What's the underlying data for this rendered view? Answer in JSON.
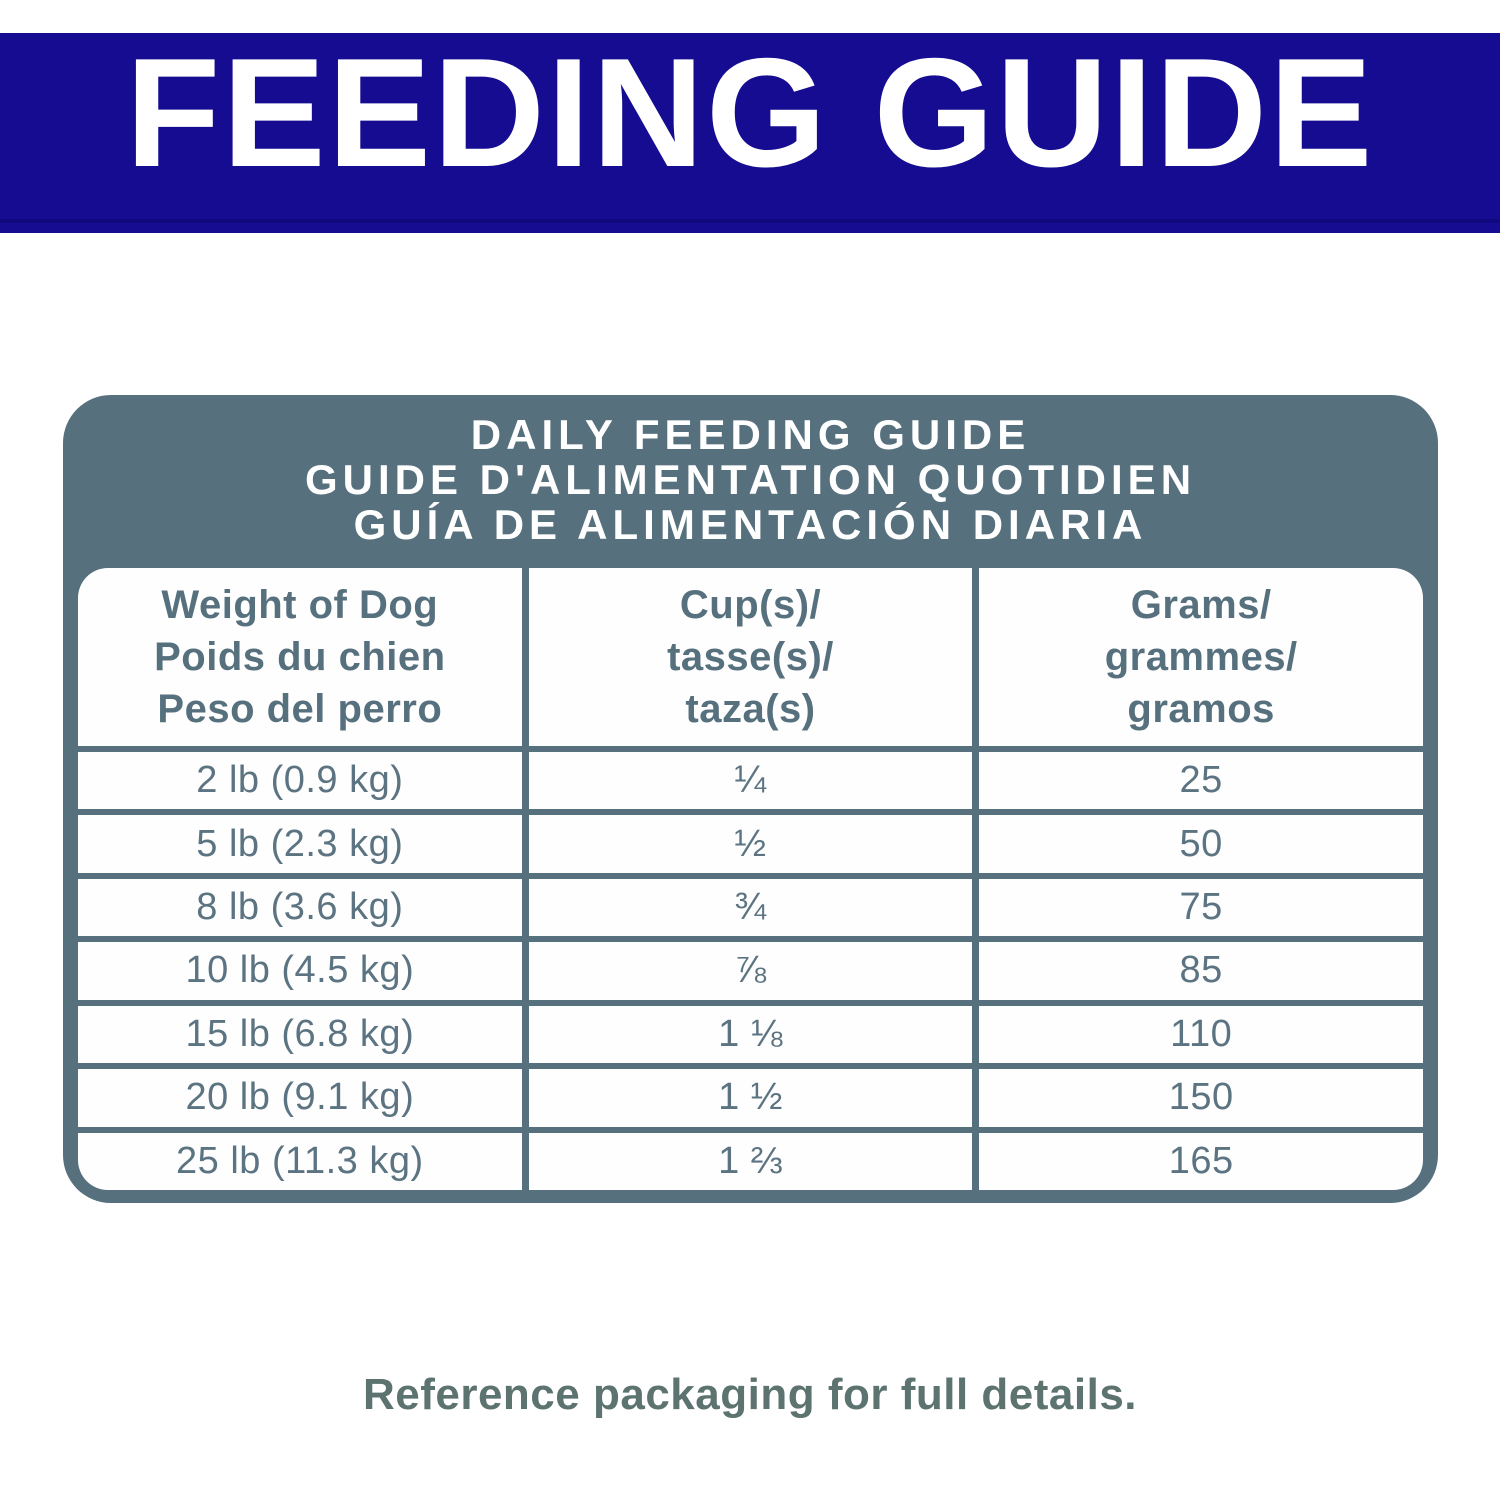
{
  "banner": {
    "title": "FEEDING GUIDE",
    "bg_color": "#150C91",
    "text_color": "#FFFFFF"
  },
  "colors": {
    "slate": "#56707E",
    "row_text": "#5C7482",
    "note_text": "#5C7370"
  },
  "table": {
    "title_lines": [
      "DAILY FEEDING GUIDE",
      "GUIDE D'ALIMENTATION QUOTIDIEN",
      "GUÍA DE ALIMENTACIÓN DIARIA"
    ],
    "columns": [
      {
        "lines": [
          "Weight of Dog",
          "Poids du chien",
          "Peso del perro"
        ]
      },
      {
        "lines": [
          "Cup(s)/",
          "tasse(s)/",
          "taza(s)"
        ]
      },
      {
        "lines": [
          "Grams/",
          "grammes/",
          "gramos"
        ]
      }
    ],
    "rows": [
      {
        "weight": "2 lb (0.9 kg)",
        "cups": "¼",
        "grams": "25"
      },
      {
        "weight": "5 lb (2.3 kg)",
        "cups": "½",
        "grams": "50"
      },
      {
        "weight": "8 lb (3.6 kg)",
        "cups": "¾",
        "grams": "75"
      },
      {
        "weight": "10 lb (4.5 kg)",
        "cups": "⅞",
        "grams": "85"
      },
      {
        "weight": "15 lb (6.8 kg)",
        "cups": "1 ⅛",
        "grams": "110"
      },
      {
        "weight": "20 lb (9.1 kg)",
        "cups": "1 ½",
        "grams": "150"
      },
      {
        "weight": "25 lb (11.3 kg)",
        "cups": "1 ⅔",
        "grams": "165"
      }
    ]
  },
  "footer": {
    "note": "Reference packaging for full details."
  }
}
